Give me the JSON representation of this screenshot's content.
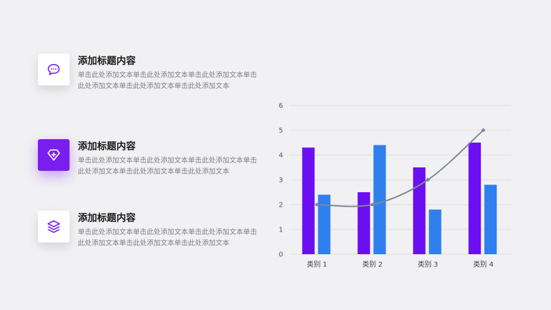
{
  "features": [
    {
      "title": "添加标题内容",
      "text": "单击此处添加文本单击此处添加文本单击此处添加文本单击此处添加文本单击此处添加文本单击此处添加文本",
      "icon": "chat-bubble-icon"
    },
    {
      "title": "添加标题内容",
      "text": "单击此处添加文本单击此处添加文本单击此处添加文本单击此处添加文本单击此处添加文本单击此处添加文本",
      "icon": "diamond-plus-icon"
    },
    {
      "title": "添加标题内容",
      "text": "单击此处添加文本单击此处添加文本单击此处添加文本单击此处添加文本单击此处添加文本单击此处添加文本",
      "icon": "layers-icon"
    }
  ],
  "colors": {
    "accent": "#7a1ef0",
    "bar1": "#6b0ff2",
    "bar2": "#2f80ee",
    "line": "#7f8898",
    "grid": "#dedede"
  },
  "chart_data": {
    "type": "bar",
    "categories": [
      "类别 1",
      "类别 2",
      "类别 3",
      "类别 4"
    ],
    "series": [
      {
        "values": [
          4.3,
          2.5,
          3.5,
          4.5
        ]
      },
      {
        "values": [
          2.4,
          4.4,
          1.8,
          2.8
        ]
      },
      {
        "type": "line",
        "values": [
          2,
          2,
          3,
          5
        ]
      }
    ],
    "ylim": [
      0,
      6
    ],
    "yticks": [
      "0",
      "1",
      "2",
      "3",
      "4",
      "5",
      "6"
    ],
    "grid": true
  }
}
